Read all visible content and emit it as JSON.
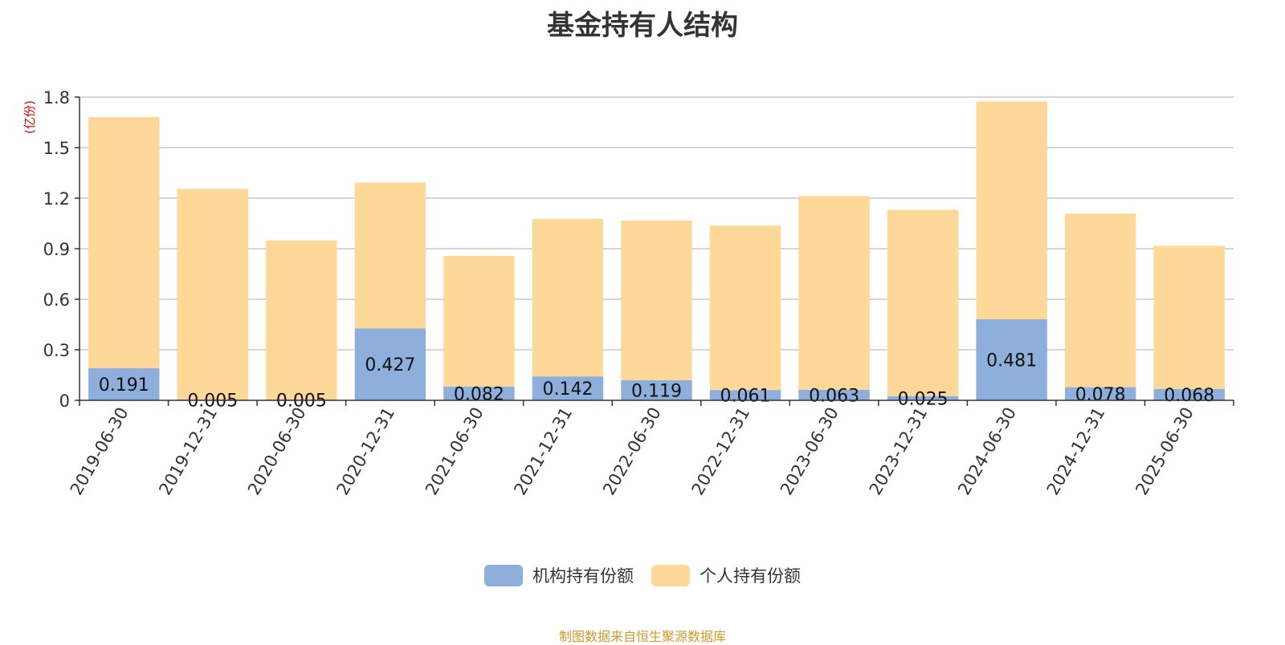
{
  "chart_data": {
    "type": "bar",
    "stacked": true,
    "title": "基金持有人结构",
    "unit_label": "(亿份)",
    "categories": [
      "2019-06-30",
      "2019-12-31",
      "2020-06-30",
      "2020-12-31",
      "2021-06-30",
      "2021-12-31",
      "2022-06-30",
      "2022-12-31",
      "2023-06-30",
      "2023-12-31",
      "2024-06-30",
      "2024-12-31",
      "2025-06-30"
    ],
    "series": [
      {
        "name": "机构持有份额",
        "color": "#8eaedc",
        "values": [
          0.191,
          0.005,
          0.005,
          0.427,
          0.082,
          0.142,
          0.119,
          0.061,
          0.063,
          0.025,
          0.481,
          0.078,
          0.068
        ],
        "labels": [
          "0.191",
          "0.005",
          "0.005",
          "0.427",
          "0.082",
          "0.142",
          "0.119",
          "0.061",
          "0.063",
          "0.025",
          "0.481",
          "0.078",
          "0.068"
        ]
      },
      {
        "name": "个人持有份额",
        "color": "#fed898",
        "values": [
          1.49,
          1.25,
          0.945,
          0.865,
          0.775,
          0.935,
          0.948,
          0.976,
          1.149,
          1.106,
          1.293,
          1.03,
          0.849
        ]
      }
    ],
    "y_ticks": [
      "0",
      "0.3",
      "0.6",
      "0.9",
      "1.2",
      "1.5",
      "1.8"
    ],
    "ylim": [
      0,
      1.8
    ],
    "grid": true,
    "legend_position": "bottom"
  },
  "footer": {
    "source": "制图数据来自恒生聚源数据库"
  }
}
